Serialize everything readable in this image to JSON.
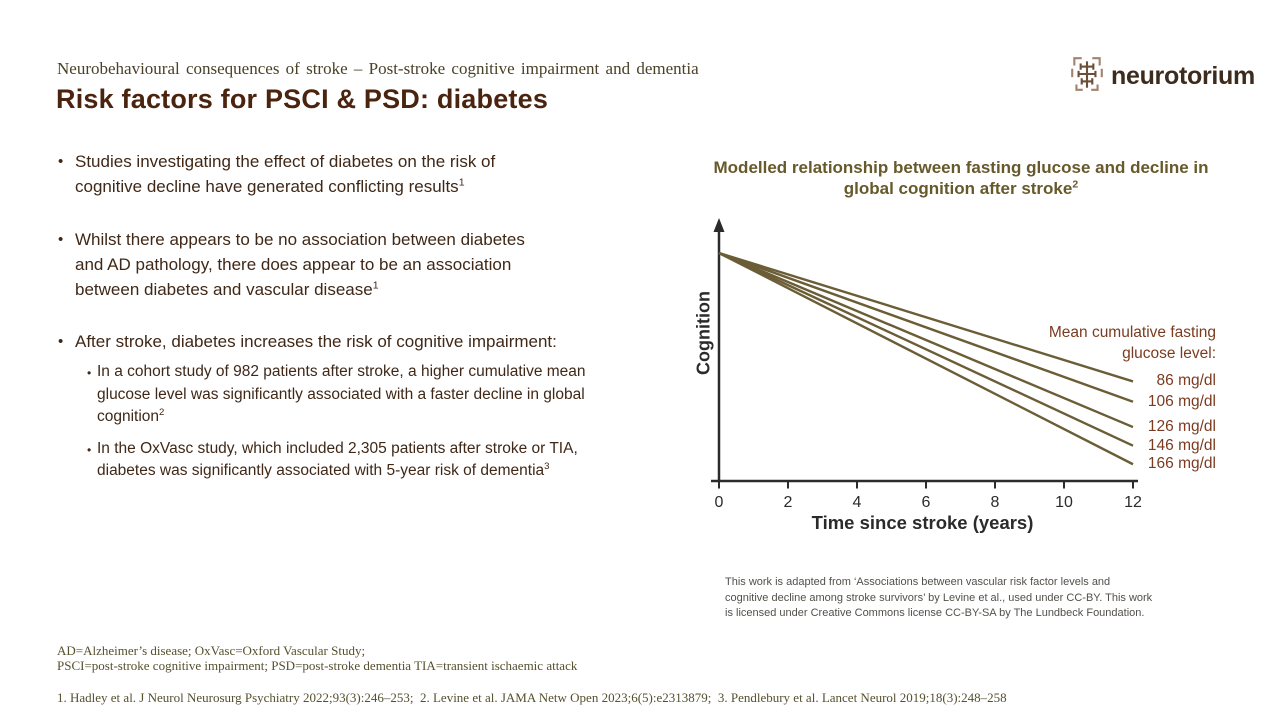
{
  "slide": {
    "eyebrow": "Neurobehavioural consequences of stroke – Post-stroke cognitive impairment and dementia",
    "title": "Risk factors for PSCI & PSD: diabetes",
    "logo_text": "neurotorium"
  },
  "bullets": {
    "marker": "•",
    "items": [
      {
        "text": "Studies investigating the effect of diabetes on the risk of cognitive decline have generated conflicting results",
        "sup": "1"
      },
      {
        "text": "Whilst there appears to be no association between diabetes and AD pathology, there does appear to be an association between diabetes and vascular disease",
        "sup": "1"
      },
      {
        "text": "After stroke, diabetes increases the risk of cognitive impairment:",
        "sup": ""
      }
    ],
    "sub_items": [
      {
        "text": "In a cohort study of 982 patients after stroke, a higher cumulative mean glucose level was significantly associated with a faster decline in global cognition",
        "sup": "2"
      },
      {
        "text": "In the OxVasc study, which included 2,305 patients after stroke or TIA, diabetes was significantly associated with 5-year risk of dementia",
        "sup": "3"
      }
    ]
  },
  "chart_data": {
    "type": "line",
    "title": "Modelled relationship between fasting glucose and decline in global cognition after stroke",
    "title_superscript": "2",
    "xlabel": "Time since stroke (years)",
    "ylabel": "Cognition",
    "x_ticks": [
      0,
      2,
      4,
      6,
      8,
      10,
      12
    ],
    "xlim": [
      0,
      12
    ],
    "y_numeric_labels_shown": false,
    "legend_position": "right",
    "legend_title": "Mean cumulative fasting glucose level:",
    "series": [
      {
        "name": "86 mg/dl",
        "x": [
          0,
          12
        ],
        "cognition_relative": [
          100,
          62
        ]
      },
      {
        "name": "106 mg/dl",
        "x": [
          0,
          12
        ],
        "cognition_relative": [
          100,
          56
        ]
      },
      {
        "name": "126 mg/dl",
        "x": [
          0,
          12
        ],
        "cognition_relative": [
          100,
          48.5
        ]
      },
      {
        "name": "146 mg/dl",
        "x": [
          0,
          12
        ],
        "cognition_relative": [
          100,
          43
        ]
      },
      {
        "name": "166 mg/dl",
        "x": [
          0,
          12
        ],
        "cognition_relative": [
          100,
          37.5
        ]
      }
    ]
  },
  "attribution": {
    "lines": [
      "This work is adapted from ‘Associations between vascular risk factor levels and",
      "cognitive decline among stroke survivors’ by Levine et al., used under CC-BY. This work",
      "is licensed under Creative Commons license CC-BY-SA by The Lundbeck Foundation."
    ]
  },
  "abbreviations": {
    "lines": [
      "AD=Alzheimer’s disease; OxVasc=Oxford Vascular Study;",
      "PSCI=post-stroke cognitive impairment; PSD=post-stroke dementia TIA=transient ischaemic attack"
    ]
  },
  "references": "1. Hadley et al. J Neurol Neurosurg Psychiatry 2022;93(3):246–253;  2. Levine et al. JAMA Netw Open 2023;6(5):e2313879;  3. Pendlebury et al. Lancet Neurol 2019;18(3):248–258",
  "colors": {
    "title": "#4a240f",
    "body_text": "#3f2817",
    "eyebrow": "#4a4128",
    "chart_title": "#66592b",
    "chart_line": "#6b5d36",
    "legend_text": "#7b3b21",
    "axis": "#2b2b2b",
    "footnote": "#56502e",
    "attribution": "#53504b",
    "logo": "#3d2b1d"
  }
}
